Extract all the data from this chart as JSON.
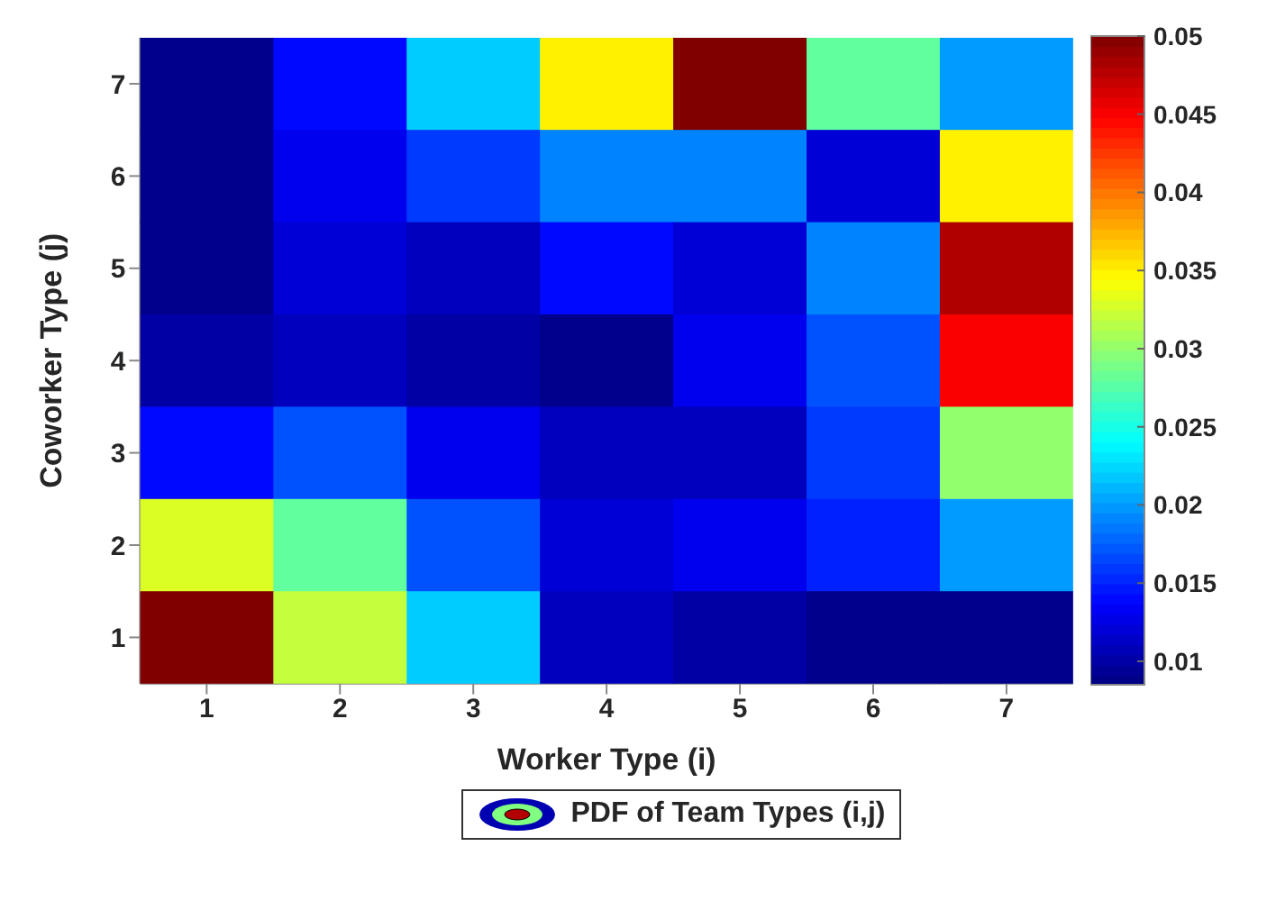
{
  "chart_data": {
    "type": "heatmap",
    "xlabel": "Worker Type (i)",
    "ylabel": "Coworker Type (j)",
    "legend_title": "PDF of Team Types (i,j)",
    "categories": [
      "1",
      "2",
      "3",
      "4",
      "5",
      "6",
      "7"
    ],
    "y_categories": [
      "7",
      "6",
      "5",
      "4",
      "3",
      "2",
      "1"
    ],
    "cells": [
      [
        0.009,
        0.014,
        0.022,
        0.035,
        0.05,
        0.028,
        0.02
      ],
      [
        0.009,
        0.013,
        0.016,
        0.019,
        0.019,
        0.012,
        0.035
      ],
      [
        0.009,
        0.012,
        0.011,
        0.014,
        0.012,
        0.019,
        0.048
      ],
      [
        0.01,
        0.011,
        0.01,
        0.009,
        0.013,
        0.017,
        0.045
      ],
      [
        0.014,
        0.017,
        0.013,
        0.011,
        0.011,
        0.016,
        0.03
      ],
      [
        0.033,
        0.028,
        0.017,
        0.012,
        0.013,
        0.015,
        0.02
      ],
      [
        0.05,
        0.032,
        0.022,
        0.011,
        0.01,
        0.009,
        0.009
      ]
    ],
    "clim": [
      0.0085,
      0.05
    ],
    "cticks": [
      0.01,
      0.015,
      0.02,
      0.025,
      0.03,
      0.035,
      0.04,
      0.045,
      0.05
    ]
  }
}
